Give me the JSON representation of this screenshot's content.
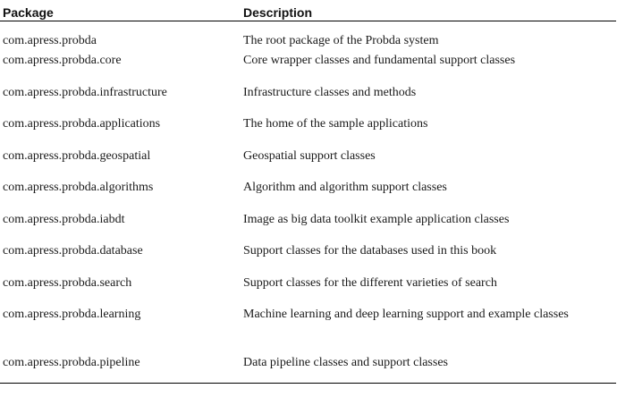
{
  "table": {
    "headers": {
      "package": "Package",
      "description": "Description"
    },
    "rows": [
      {
        "package": "com.apress.probda",
        "description": "The root package of the Probda system"
      },
      {
        "package": "com.apress.probda.core",
        "description": "Core wrapper classes and fundamental support classes"
      },
      {
        "package": "com.apress.probda.infrastructure",
        "description": "Infrastructure classes and methods"
      },
      {
        "package": "com.apress.probda.applications",
        "description": "The home of the sample applications"
      },
      {
        "package": "com.apress.probda.geospatial",
        "description": "Geospatial support classes"
      },
      {
        "package": "com.apress.probda.algorithms",
        "description": "Algorithm and algorithm support classes"
      },
      {
        "package": "com.apress.probda.iabdt",
        "description": "Image as big data toolkit example application classes"
      },
      {
        "package": "com.apress.probda.database",
        "description": "Support classes for the databases used in this book"
      },
      {
        "package": "com.apress.probda.search",
        "description": "Support classes for the different varieties of search"
      },
      {
        "package": "com.apress.probda.learning",
        "description": "Machine learning and deep learning support and example classes"
      },
      {
        "package": "com.apress.probda.pipeline",
        "description": "Data pipeline classes and support classes"
      }
    ]
  }
}
